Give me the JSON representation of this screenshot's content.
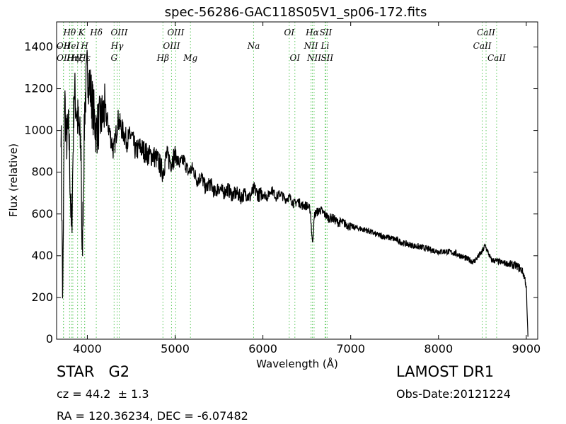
{
  "chart_data": {
    "type": "line",
    "title": "spec-56286-GAC118S05V1_sp06-172.fits",
    "xlabel": "Wavelength (Å)",
    "ylabel": "Flux (relative)",
    "xlim": [
      3650,
      9130
    ],
    "ylim": [
      0,
      1520
    ],
    "xticks": [
      4000,
      5000,
      6000,
      7000,
      8000,
      9000
    ],
    "yticks": [
      0,
      200,
      400,
      600,
      800,
      1000,
      1200,
      1400
    ],
    "grid": false,
    "line_color": "#000000",
    "marker_color": "#5cc85c",
    "series": [
      {
        "x": [
          3700,
          3720,
          3740,
          3760,
          3790,
          3820,
          3850,
          3890,
          3930,
          3940,
          3970,
          4000,
          4050,
          4100,
          4150,
          4200,
          4250,
          4300,
          4350,
          4400,
          4450,
          4500,
          4550,
          4600,
          4650,
          4700,
          4750,
          4800,
          4860,
          4900,
          4950,
          5000,
          5050,
          5100,
          5150,
          5200,
          5250,
          5300,
          5350,
          5400,
          5450,
          5500,
          5550,
          5600,
          5650,
          5700,
          5750,
          5800,
          5850,
          5900,
          5950,
          6000,
          6050,
          6100,
          6150,
          6200,
          6250,
          6300,
          6350,
          6400,
          6450,
          6500,
          6540,
          6563,
          6590,
          6650,
          6700,
          6750,
          6800,
          6850,
          6900,
          6950,
          7000,
          7100,
          7200,
          7300,
          7400,
          7500,
          7600,
          7700,
          7800,
          7900,
          8000,
          8100,
          8200,
          8300,
          8400,
          8500,
          8530,
          8600,
          8700,
          8800,
          8900,
          8950,
          8970,
          8990,
          9000,
          9010,
          9020
        ],
        "y": [
          1050,
          150,
          1200,
          950,
          1000,
          480,
          1200,
          1050,
          900,
          350,
          1100,
          1300,
          1150,
          1000,
          1050,
          1100,
          1000,
          900,
          1050,
          1000,
          950,
          980,
          900,
          920,
          900,
          880,
          880,
          860,
          800,
          880,
          850,
          880,
          840,
          860,
          800,
          820,
          760,
          780,
          720,
          750,
          700,
          730,
          700,
          720,
          690,
          700,
          680,
          700,
          680,
          720,
          690,
          700,
          680,
          720,
          680,
          700,
          670,
          680,
          650,
          660,
          640,
          640,
          620,
          460,
          600,
          620,
          600,
          580,
          580,
          560,
          560,
          550,
          540,
          530,
          520,
          500,
          490,
          480,
          460,
          450,
          440,
          430,
          420,
          420,
          410,
          390,
          370,
          420,
          450,
          380,
          370,
          360,
          350,
          330,
          310,
          280,
          250,
          120,
          0
        ]
      }
    ],
    "lines": [
      {
        "wl": 3727,
        "label": "OII",
        "row": 1
      },
      {
        "wl": 3729,
        "label": "OII",
        "row": 2
      },
      {
        "wl": 3798,
        "label": "Hθ",
        "row": 0
      },
      {
        "wl": 3820,
        "label": "HeI",
        "row": 1
      },
      {
        "wl": 3835,
        "label": "Hη",
        "row": 2
      },
      {
        "wl": 3889,
        "label": "Hζ",
        "row": 2
      },
      {
        "wl": 3934,
        "label": "K",
        "row": 0
      },
      {
        "wl": 3969,
        "label": "H",
        "row": 1
      },
      {
        "wl": 3970,
        "label": "Hε",
        "row": 2
      },
      {
        "wl": 4102,
        "label": "Hδ",
        "row": 0
      },
      {
        "wl": 4305,
        "label": "G",
        "row": 2
      },
      {
        "wl": 4340,
        "label": "Hγ",
        "row": 1
      },
      {
        "wl": 4363,
        "label": "OIII",
        "row": 0
      },
      {
        "wl": 4861,
        "label": "Hβ",
        "row": 2
      },
      {
        "wl": 4959,
        "label": "OIII",
        "row": 1
      },
      {
        "wl": 5007,
        "label": "OIII",
        "row": 0
      },
      {
        "wl": 5175,
        "label": "Mg",
        "row": 2
      },
      {
        "wl": 5894,
        "label": "Na",
        "row": 1
      },
      {
        "wl": 6300,
        "label": "OI",
        "row": 0
      },
      {
        "wl": 6364,
        "label": "OI",
        "row": 2
      },
      {
        "wl": 6548,
        "label": "NII",
        "row": 1
      },
      {
        "wl": 6563,
        "label": "Hα",
        "row": 0
      },
      {
        "wl": 6583,
        "label": "NII",
        "row": 2
      },
      {
        "wl": 6708,
        "label": "Li",
        "row": 1
      },
      {
        "wl": 6716,
        "label": "SII",
        "row": 0
      },
      {
        "wl": 6731,
        "label": "SII",
        "row": 2
      },
      {
        "wl": 8498,
        "label": "CaII",
        "row": 1
      },
      {
        "wl": 8542,
        "label": "CaII",
        "row": 0
      },
      {
        "wl": 8662,
        "label": "CaII",
        "row": 2
      }
    ]
  },
  "info": {
    "class": "STAR   G2",
    "survey": "LAMOST DR1",
    "cz": "cz = 44.2  ± 1.3",
    "obs_date": "Obs-Date:20121224",
    "radec": "RA = 120.36234, DEC = -6.07482"
  }
}
